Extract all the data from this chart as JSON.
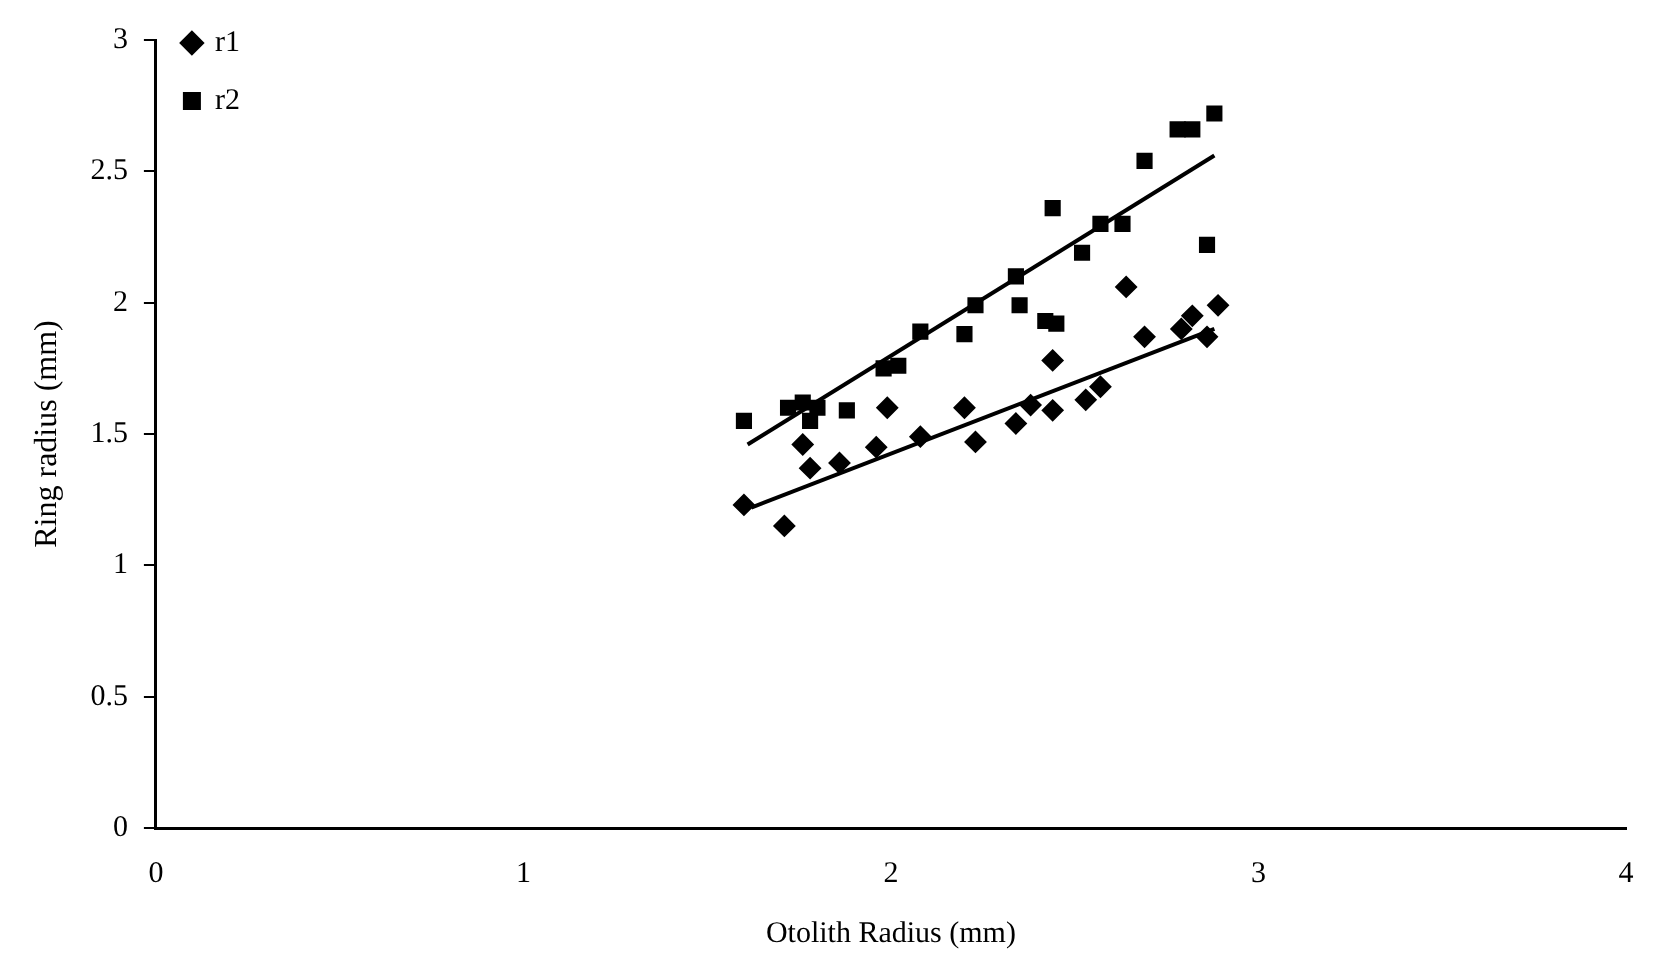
{
  "chart_data": {
    "type": "scatter",
    "xlabel": "Otolith Radius (mm)",
    "ylabel": "Ring radius (mm)",
    "xlim": [
      0,
      4
    ],
    "xticks": [
      0,
      1,
      2,
      3,
      4
    ],
    "ylim": [
      0,
      3
    ],
    "yticks": [
      0,
      0.5,
      1,
      1.5,
      2,
      2.5,
      3
    ],
    "grid": false,
    "legend": "top left",
    "series": [
      {
        "name": "r1",
        "color": "#000000",
        "marker": "diamond",
        "x": [
          1.6,
          1.71,
          1.76,
          1.78,
          1.86,
          1.96,
          1.99,
          2.08,
          2.2,
          2.23,
          2.34,
          2.38,
          2.44,
          2.44,
          2.53,
          2.57,
          2.64,
          2.69,
          2.79,
          2.82,
          2.86,
          2.89
        ],
        "values": [
          1.23,
          1.15,
          1.46,
          1.37,
          1.39,
          1.45,
          1.6,
          1.49,
          1.6,
          1.47,
          1.54,
          1.61,
          1.59,
          1.78,
          1.63,
          1.68,
          2.06,
          1.87,
          1.9,
          1.95,
          1.87,
          1.99
        ]
      },
      {
        "name": "r2",
        "color": "#000000",
        "marker": "square",
        "x": [
          1.6,
          1.72,
          1.76,
          1.78,
          1.8,
          1.88,
          1.98,
          2.02,
          2.08,
          2.2,
          2.23,
          2.34,
          2.35,
          2.42,
          2.45,
          2.44,
          2.52,
          2.57,
          2.63,
          2.69,
          2.78,
          2.82,
          2.88,
          2.86
        ],
        "values": [
          1.55,
          1.6,
          1.62,
          1.55,
          1.6,
          1.59,
          1.75,
          1.76,
          1.89,
          1.88,
          1.99,
          2.1,
          1.99,
          1.93,
          1.92,
          2.36,
          2.19,
          2.3,
          2.3,
          2.54,
          2.66,
          2.66,
          2.72,
          2.22
        ]
      },
      {
        "type": "line",
        "color": "#000000",
        "marker": "none",
        "line_style": "solid",
        "x": [
          1.62,
          2.88
        ],
        "values": [
          1.22,
          1.9
        ]
      },
      {
        "type": "line",
        "color": "#000000",
        "marker": "none",
        "line_style": "solid",
        "x": [
          1.61,
          2.88
        ],
        "values": [
          1.46,
          2.56
        ]
      }
    ]
  }
}
